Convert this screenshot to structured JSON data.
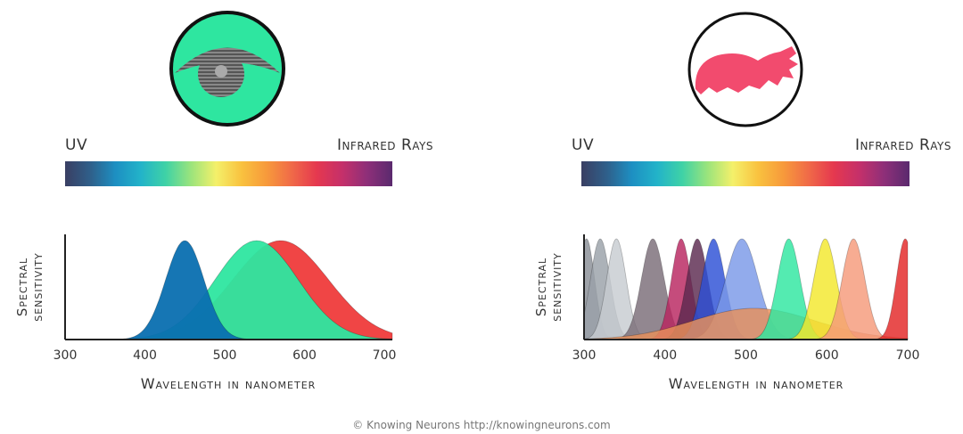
{
  "chart_data": [
    {
      "type": "area",
      "title": "",
      "icon": "human-eye-icon",
      "spectrum_labels": {
        "left": "UV",
        "right": "Infrared Rays"
      },
      "xlabel": "Wavelength in nanometer",
      "ylabel": [
        "Spectral",
        "sensitivity"
      ],
      "xlim": [
        300,
        710
      ],
      "xticks": [
        300,
        400,
        500,
        600,
        700
      ],
      "series": [
        {
          "peak": 570,
          "width": 60,
          "color": "#ef3b3b"
        },
        {
          "peak": 540,
          "width": 52,
          "color": "#2ee6a0"
        },
        {
          "peak": 450,
          "width": 24,
          "color": "#0a6fb0"
        }
      ]
    },
    {
      "type": "area",
      "title": "",
      "icon": "mantis-shrimp-icon",
      "spectrum_labels": {
        "left": "UV",
        "right": "Infrared Rays"
      },
      "xlabel": "Wavelength in nanometer",
      "ylabel": [
        "Spectral",
        "sensitivity"
      ],
      "xlim": [
        300,
        700
      ],
      "xticks": [
        300,
        400,
        500,
        600,
        700
      ],
      "series": [
        {
          "peak": 303,
          "width": 10,
          "color": "#8a8f96"
        },
        {
          "peak": 320,
          "width": 12,
          "color": "#9aa1a8"
        },
        {
          "peak": 340,
          "width": 12,
          "color": "#c7ccd1"
        },
        {
          "peak": 385,
          "width": 14,
          "color": "#7a6d77"
        },
        {
          "peak": 420,
          "width": 12,
          "color": "#b8255f"
        },
        {
          "peak": 440,
          "width": 13,
          "color": "#5c2a4f"
        },
        {
          "peak": 460,
          "width": 14,
          "color": "#2c4fd6"
        },
        {
          "peak": 495,
          "width": 20,
          "color": "#7a98e8"
        },
        {
          "peak": 510,
          "width": 75,
          "color": "#e8905a",
          "height": 0.31
        },
        {
          "peak": 553,
          "width": 14,
          "color": "#2ee6a0"
        },
        {
          "peak": 598,
          "width": 14,
          "color": "#f3e82c"
        },
        {
          "peak": 633,
          "width": 14,
          "color": "#f59a7a"
        },
        {
          "peak": 697,
          "width": 11,
          "color": "#e32626"
        }
      ]
    }
  ],
  "spectrum_colors": [
    "#3a3f63",
    "#2f5f8a",
    "#1d8fc2",
    "#22b3c9",
    "#3fd2a6",
    "#9be47c",
    "#f4f06a",
    "#f9c23f",
    "#f79a3b",
    "#f06a48",
    "#e5384f",
    "#c5306a",
    "#8e2f79",
    "#5a2a6e"
  ],
  "footer": "© Knowing Neurons http://knowingneurons.com"
}
